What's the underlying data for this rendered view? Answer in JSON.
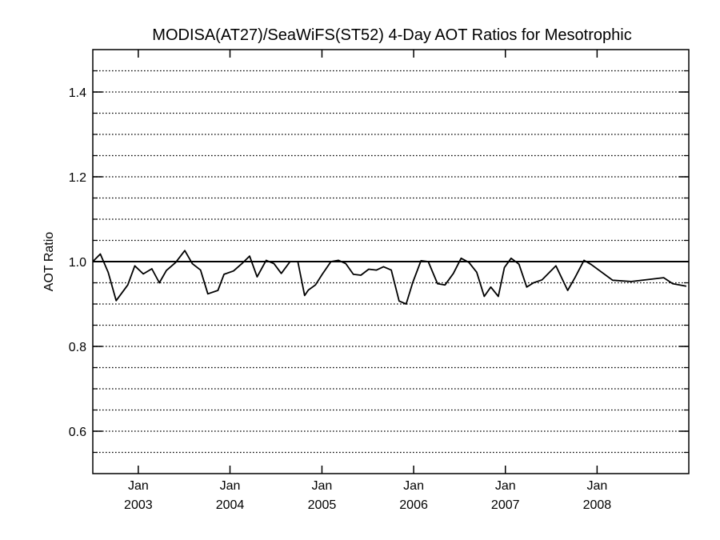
{
  "chart_data": {
    "type": "line",
    "title": "MODISA(AT27)/SeaWiFS(ST52) 4-Day AOT Ratios for Mesotrophic",
    "xlabel": "",
    "ylabel": "AOT Ratio",
    "xlim": [
      "2002-07-04",
      "2008-12-31"
    ],
    "ylim": [
      0.5,
      1.5
    ],
    "y_ticks": [
      0.6,
      0.8,
      1.0,
      1.2,
      1.4
    ],
    "y_tick_labels": [
      "0.6",
      "0.8",
      "1.0",
      "1.2",
      "1.4"
    ],
    "y_gridlines": [
      0.55,
      0.6,
      0.65,
      0.7,
      0.75,
      0.8,
      0.85,
      0.9,
      0.95,
      1.0,
      1.05,
      1.1,
      1.15,
      1.2,
      1.25,
      1.3,
      1.35,
      1.4,
      1.45
    ],
    "grid": "horizontal dotted",
    "reference_line": 1.0,
    "x_ticks": [
      {
        "date": "2003-01-01",
        "month": "Jan",
        "year": "2003"
      },
      {
        "date": "2004-01-01",
        "month": "Jan",
        "year": "2004"
      },
      {
        "date": "2005-01-01",
        "month": "Jan",
        "year": "2005"
      },
      {
        "date": "2006-01-01",
        "month": "Jan",
        "year": "2006"
      },
      {
        "date": "2007-01-01",
        "month": "Jan",
        "year": "2007"
      },
      {
        "date": "2008-01-01",
        "month": "Jan",
        "year": "2008"
      }
    ],
    "series": [
      {
        "x": [
          "2002-07-04",
          "2002-08-03",
          "2002-09-03",
          "2002-10-05",
          "2002-11-20",
          "2002-12-18",
          "2003-01-21",
          "2003-02-24",
          "2003-03-26",
          "2003-04-23",
          "2003-05-30",
          "2003-07-05",
          "2003-08-04",
          "2003-09-06",
          "2003-10-05",
          "2003-11-14",
          "2003-12-08",
          "2004-01-15",
          "2004-02-17",
          "2004-03-19",
          "2004-04-18",
          "2004-05-24",
          "2004-06-24",
          "2004-07-23",
          "2004-08-27",
          "2004-09-27",
          "2004-10-24",
          "2004-11-08",
          "2004-12-06",
          "2005-01-02",
          "2005-02-06",
          "2005-03-08",
          "2005-04-06",
          "2005-05-06",
          "2005-06-05",
          "2005-07-06",
          "2005-08-06",
          "2005-09-03",
          "2005-10-04",
          "2005-11-04",
          "2005-12-02",
          "2005-12-28",
          "2006-01-30",
          "2006-02-28",
          "2006-04-06",
          "2006-05-06",
          "2006-06-08",
          "2006-07-09",
          "2006-08-09",
          "2006-09-09",
          "2006-10-09",
          "2006-11-04",
          "2006-12-04",
          "2006-12-28",
          "2007-01-24",
          "2007-02-24",
          "2007-03-27",
          "2007-04-23",
          "2007-05-27",
          "2007-07-21",
          "2007-09-06",
          "2007-10-05",
          "2007-11-10",
          "2007-12-09",
          "2008-03-03",
          "2008-05-16",
          "2008-09-22",
          "2008-10-28",
          "2008-12-21"
        ],
        "values": [
          1.0,
          1.018,
          0.975,
          0.908,
          0.945,
          0.99,
          0.971,
          0.983,
          0.95,
          0.979,
          0.998,
          1.026,
          0.995,
          0.98,
          0.924,
          0.932,
          0.97,
          0.978,
          0.995,
          1.013,
          0.964,
          1.003,
          0.995,
          0.972,
          1.0,
          1.0,
          0.92,
          0.933,
          0.945,
          0.97,
          1.0,
          1.003,
          0.995,
          0.97,
          0.968,
          0.982,
          0.98,
          0.988,
          0.98,
          0.907,
          0.9,
          0.95,
          1.002,
          1.0,
          0.948,
          0.945,
          0.972,
          1.008,
          0.998,
          0.975,
          0.918,
          0.94,
          0.918,
          0.986,
          1.008,
          0.994,
          0.94,
          0.95,
          0.957,
          0.99,
          0.932,
          0.962,
          1.003,
          0.993,
          0.956,
          0.953,
          0.962,
          0.948,
          0.942
        ]
      }
    ]
  }
}
